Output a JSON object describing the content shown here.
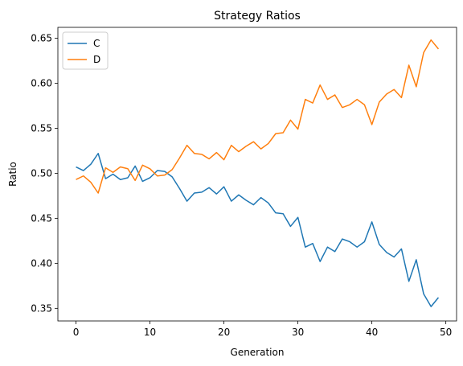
{
  "chart_data": {
    "type": "line",
    "title": "Strategy Ratios",
    "xlabel": "Generation",
    "ylabel": "Ratio",
    "xlim": [
      -2.45,
      51.45
    ],
    "ylim": [
      0.336,
      0.662
    ],
    "xticks": [
      0,
      10,
      20,
      30,
      40,
      50
    ],
    "yticks": [
      0.35,
      0.4,
      0.45,
      0.5,
      0.55,
      0.6,
      0.65
    ],
    "grid": false,
    "legend": "top-left",
    "x": [
      0,
      1,
      2,
      3,
      4,
      5,
      6,
      7,
      8,
      9,
      10,
      11,
      12,
      13,
      14,
      15,
      16,
      17,
      18,
      19,
      20,
      21,
      22,
      23,
      24,
      25,
      26,
      27,
      28,
      29,
      30,
      31,
      32,
      33,
      34,
      35,
      36,
      37,
      38,
      39,
      40,
      41,
      42,
      43,
      44,
      45,
      46,
      47,
      48,
      49
    ],
    "series": [
      {
        "name": "C",
        "color": "#1f77b4",
        "values": [
          0.507,
          0.503,
          0.51,
          0.522,
          0.494,
          0.499,
          0.493,
          0.495,
          0.508,
          0.491,
          0.495,
          0.503,
          0.502,
          0.496,
          0.483,
          0.469,
          0.478,
          0.479,
          0.484,
          0.477,
          0.485,
          0.469,
          0.476,
          0.47,
          0.465,
          0.473,
          0.467,
          0.456,
          0.455,
          0.441,
          0.451,
          0.418,
          0.422,
          0.402,
          0.418,
          0.413,
          0.427,
          0.424,
          0.418,
          0.424,
          0.446,
          0.421,
          0.412,
          0.407,
          0.416,
          0.38,
          0.404,
          0.366,
          0.352,
          0.362
        ]
      },
      {
        "name": "D",
        "color": "#ff7f0e",
        "values": [
          0.493,
          0.497,
          0.49,
          0.478,
          0.506,
          0.501,
          0.507,
          0.505,
          0.492,
          0.509,
          0.505,
          0.497,
          0.498,
          0.504,
          0.517,
          0.531,
          0.522,
          0.521,
          0.516,
          0.523,
          0.515,
          0.531,
          0.524,
          0.53,
          0.535,
          0.527,
          0.533,
          0.544,
          0.545,
          0.559,
          0.549,
          0.582,
          0.578,
          0.598,
          0.582,
          0.587,
          0.573,
          0.576,
          0.582,
          0.576,
          0.554,
          0.579,
          0.588,
          0.593,
          0.584,
          0.62,
          0.596,
          0.634,
          0.648,
          0.638
        ]
      }
    ]
  }
}
